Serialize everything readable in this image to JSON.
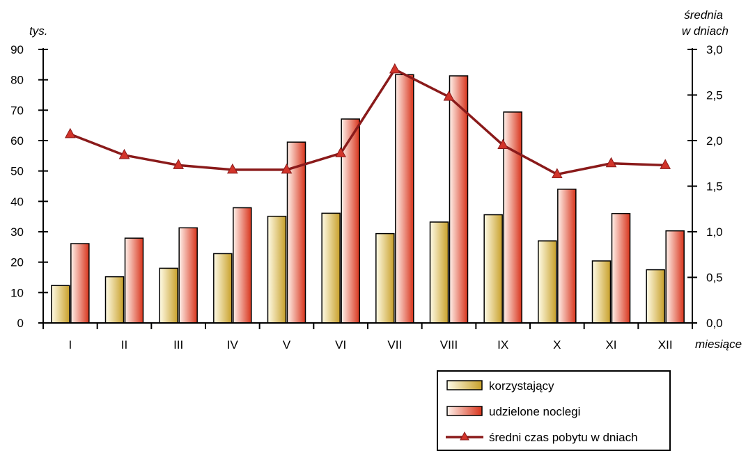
{
  "chart_data": {
    "type": "bar",
    "categories": [
      "I",
      "II",
      "III",
      "IV",
      "V",
      "VI",
      "VII",
      "VIII",
      "IX",
      "X",
      "XI",
      "XII"
    ],
    "series": [
      {
        "name": "korzystający",
        "type": "bar",
        "axis": "left",
        "values": [
          12.3,
          15.2,
          18.0,
          22.8,
          35.1,
          36.1,
          29.4,
          33.2,
          35.6,
          27.0,
          20.4,
          17.5
        ]
      },
      {
        "name": "udzielone noclegi",
        "type": "bar",
        "axis": "left",
        "values": [
          26.1,
          27.9,
          31.3,
          37.9,
          59.5,
          67.1,
          81.7,
          81.3,
          69.4,
          44.0,
          36.0,
          30.3
        ]
      },
      {
        "name": "średni czas pobytu w dniach",
        "type": "line",
        "axis": "right",
        "values": [
          2.07,
          1.84,
          1.73,
          1.68,
          1.68,
          1.86,
          2.78,
          2.48,
          1.95,
          1.63,
          1.75,
          1.73
        ]
      }
    ],
    "ylabel": "tys.",
    "y2label_line1": "średnia",
    "y2label_line2": "w dniach",
    "xlabel": "miesiące",
    "ylim": [
      0,
      90
    ],
    "y2lim": [
      0,
      3.0
    ],
    "yticks": [
      "0",
      "10",
      "20",
      "30",
      "40",
      "50",
      "60",
      "70",
      "80",
      "90"
    ],
    "y2ticks": [
      "0,0",
      "0,5",
      "1,0",
      "1,5",
      "2,0",
      "2,5",
      "3,0"
    ],
    "grid": false,
    "legend_position": "bottom-right",
    "colors": {
      "bar1_light": "#fffbe6",
      "bar1_dark": "#c8a02a",
      "bar2_light": "#fff1ea",
      "bar2_dark": "#d8341c",
      "line": "#8a1a1a",
      "marker": "#d2342a"
    }
  }
}
